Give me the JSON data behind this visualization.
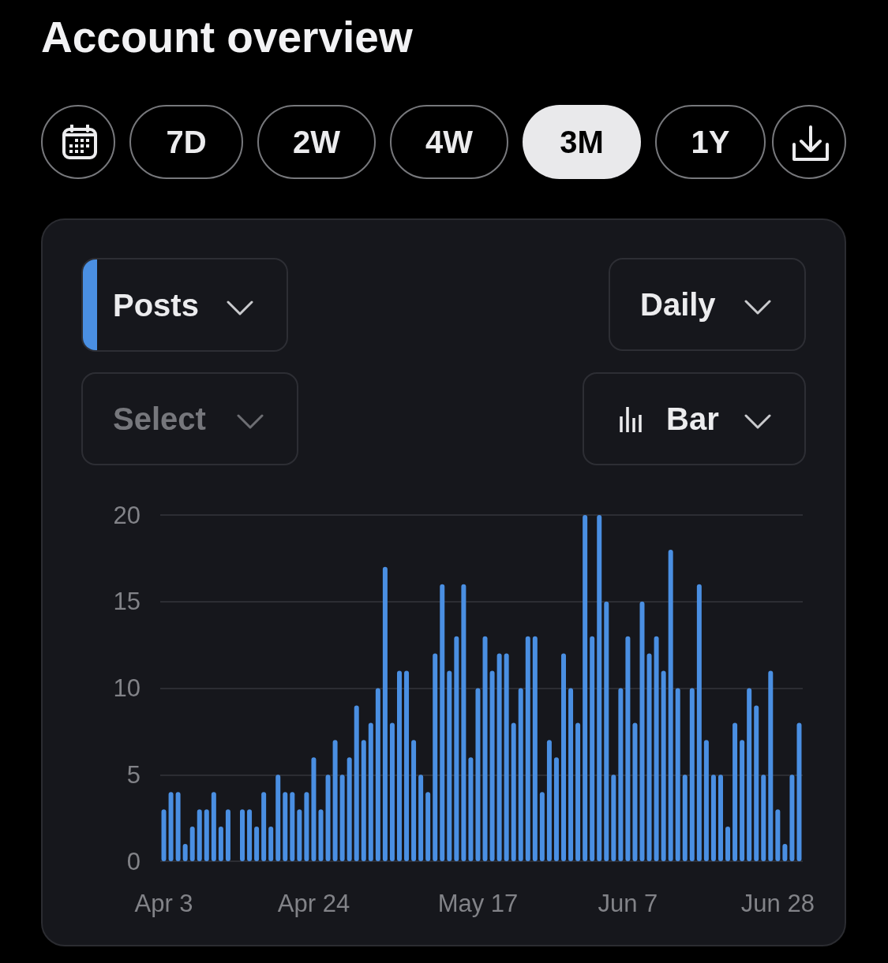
{
  "chart_data": {
    "type": "bar",
    "title": "Account overview",
    "categories": [
      "Apr 3",
      null,
      null,
      null,
      null,
      null,
      null,
      null,
      null,
      null,
      null,
      null,
      null,
      null,
      null,
      null,
      null,
      null,
      null,
      null,
      null,
      "Apr 24",
      null,
      null,
      null,
      null,
      null,
      null,
      null,
      null,
      null,
      null,
      null,
      null,
      null,
      null,
      null,
      null,
      null,
      null,
      null,
      null,
      null,
      null,
      "May 17",
      null,
      null,
      null,
      null,
      null,
      null,
      null,
      null,
      null,
      null,
      null,
      null,
      null,
      null,
      null,
      null,
      null,
      null,
      null,
      null,
      "Jun 7",
      null,
      null,
      null,
      null,
      null,
      null,
      null,
      null,
      null,
      null,
      null,
      null,
      null,
      null,
      null,
      null,
      null,
      null,
      null,
      null,
      "Jun 28",
      null,
      null,
      null
    ],
    "series": [
      {
        "name": "Posts",
        "color": "#4a8fe2",
        "values": [
          3,
          4,
          4,
          1,
          2,
          3,
          3,
          4,
          2,
          3,
          0,
          3,
          3,
          2,
          4,
          2,
          5,
          4,
          4,
          3,
          4,
          6,
          3,
          5,
          7,
          5,
          6,
          9,
          7,
          8,
          10,
          17,
          8,
          11,
          11,
          7,
          5,
          4,
          12,
          16,
          11,
          13,
          16,
          6,
          10,
          13,
          11,
          12,
          12,
          8,
          10,
          13,
          13,
          4,
          7,
          6,
          12,
          10,
          8,
          20,
          13,
          20,
          15,
          5,
          10,
          13,
          8,
          15,
          12,
          13,
          11,
          18,
          10,
          5,
          10,
          16,
          7,
          5,
          5,
          2,
          8,
          7,
          10,
          9,
          5,
          11,
          3,
          1,
          5,
          8
        ]
      }
    ],
    "ylim": [
      0,
      20
    ],
    "yticks": [
      0,
      5,
      10,
      15,
      20
    ],
    "grid": "y",
    "legend": "top left",
    "annotations": [
      "7D",
      "2W",
      "4W",
      "3M",
      "1Y",
      "Daily",
      "Select",
      "Bar"
    ]
  }
}
